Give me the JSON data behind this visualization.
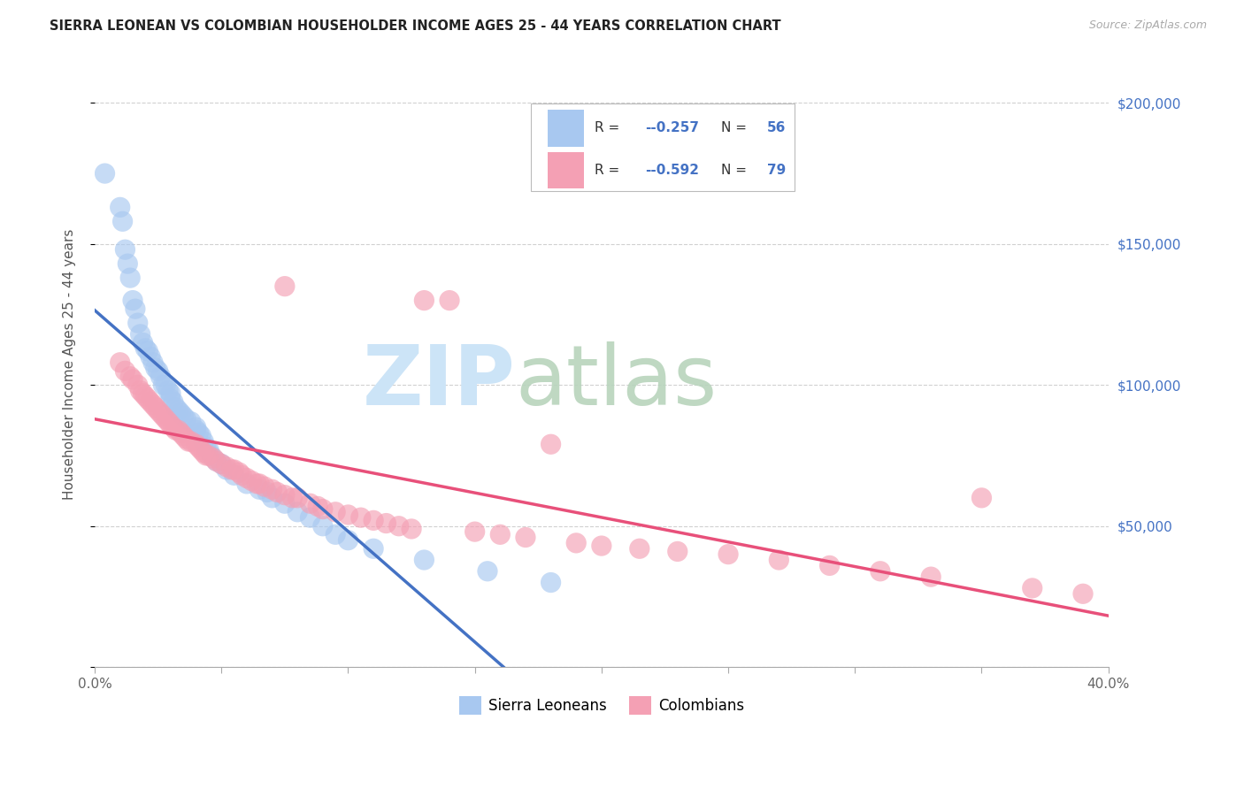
{
  "title": "SIERRA LEONEAN VS COLOMBIAN HOUSEHOLDER INCOME AGES 25 - 44 YEARS CORRELATION CHART",
  "source": "Source: ZipAtlas.com",
  "ylabel": "Householder Income Ages 25 - 44 years",
  "x_min": 0.0,
  "x_max": 0.4,
  "y_min": 0,
  "y_max": 215000,
  "y_ticks": [
    0,
    50000,
    100000,
    150000,
    200000
  ],
  "x_ticks_minor": [
    0.0,
    0.05,
    0.1,
    0.15,
    0.2,
    0.25,
    0.3,
    0.35,
    0.4
  ],
  "legend_r1": "-0.257",
  "legend_n1": "56",
  "legend_r2": "-0.592",
  "legend_n2": "79",
  "color_sl": "#a8c8f0",
  "color_co": "#f4a0b4",
  "line_color_sl": "#4472c4",
  "line_color_co": "#e8507a",
  "sl_x": [
    0.004,
    0.01,
    0.011,
    0.012,
    0.013,
    0.014,
    0.015,
    0.016,
    0.017,
    0.018,
    0.019,
    0.02,
    0.021,
    0.022,
    0.023,
    0.024,
    0.025,
    0.026,
    0.027,
    0.028,
    0.029,
    0.03,
    0.03,
    0.031,
    0.032,
    0.033,
    0.034,
    0.035,
    0.036,
    0.038,
    0.04,
    0.04,
    0.041,
    0.042,
    0.043,
    0.044,
    0.045,
    0.046,
    0.048,
    0.05,
    0.052,
    0.055,
    0.06,
    0.065,
    0.068,
    0.07,
    0.075,
    0.08,
    0.085,
    0.09,
    0.095,
    0.1,
    0.11,
    0.13,
    0.155,
    0.18
  ],
  "sl_y": [
    175000,
    163000,
    158000,
    148000,
    143000,
    138000,
    130000,
    127000,
    122000,
    118000,
    115000,
    113000,
    112000,
    110000,
    108000,
    106000,
    105000,
    103000,
    100000,
    100000,
    98000,
    97000,
    95000,
    94000,
    92000,
    91000,
    90000,
    89000,
    88000,
    87000,
    85000,
    84000,
    83000,
    82000,
    80000,
    78000,
    77000,
    75000,
    73000,
    72000,
    70000,
    68000,
    65000,
    63000,
    62000,
    60000,
    58000,
    55000,
    53000,
    50000,
    47000,
    45000,
    42000,
    38000,
    34000,
    30000
  ],
  "co_x": [
    0.01,
    0.012,
    0.014,
    0.015,
    0.017,
    0.018,
    0.019,
    0.02,
    0.021,
    0.022,
    0.023,
    0.024,
    0.025,
    0.026,
    0.027,
    0.028,
    0.029,
    0.03,
    0.031,
    0.032,
    0.033,
    0.034,
    0.035,
    0.036,
    0.037,
    0.038,
    0.04,
    0.041,
    0.042,
    0.043,
    0.044,
    0.045,
    0.047,
    0.048,
    0.05,
    0.052,
    0.054,
    0.055,
    0.057,
    0.058,
    0.06,
    0.062,
    0.064,
    0.065,
    0.067,
    0.07,
    0.072,
    0.075,
    0.078,
    0.08,
    0.085,
    0.088,
    0.09,
    0.095,
    0.1,
    0.105,
    0.11,
    0.115,
    0.12,
    0.125,
    0.13,
    0.14,
    0.15,
    0.16,
    0.17,
    0.18,
    0.19,
    0.2,
    0.215,
    0.23,
    0.25,
    0.27,
    0.29,
    0.31,
    0.33,
    0.35,
    0.37,
    0.39,
    0.075
  ],
  "co_y": [
    108000,
    105000,
    103000,
    102000,
    100000,
    98000,
    97000,
    96000,
    95000,
    94000,
    93000,
    92000,
    91000,
    90000,
    89000,
    88000,
    87000,
    86000,
    85000,
    84000,
    84000,
    83000,
    82000,
    81000,
    80000,
    80000,
    79000,
    78000,
    77000,
    76000,
    75000,
    75000,
    74000,
    73000,
    72000,
    71000,
    70000,
    70000,
    69000,
    68000,
    67000,
    66000,
    65000,
    65000,
    64000,
    63000,
    62000,
    61000,
    60000,
    60000,
    58000,
    57000,
    56000,
    55000,
    54000,
    53000,
    52000,
    51000,
    50000,
    49000,
    130000,
    130000,
    48000,
    47000,
    46000,
    79000,
    44000,
    43000,
    42000,
    41000,
    40000,
    38000,
    36000,
    34000,
    32000,
    60000,
    28000,
    26000,
    135000
  ]
}
